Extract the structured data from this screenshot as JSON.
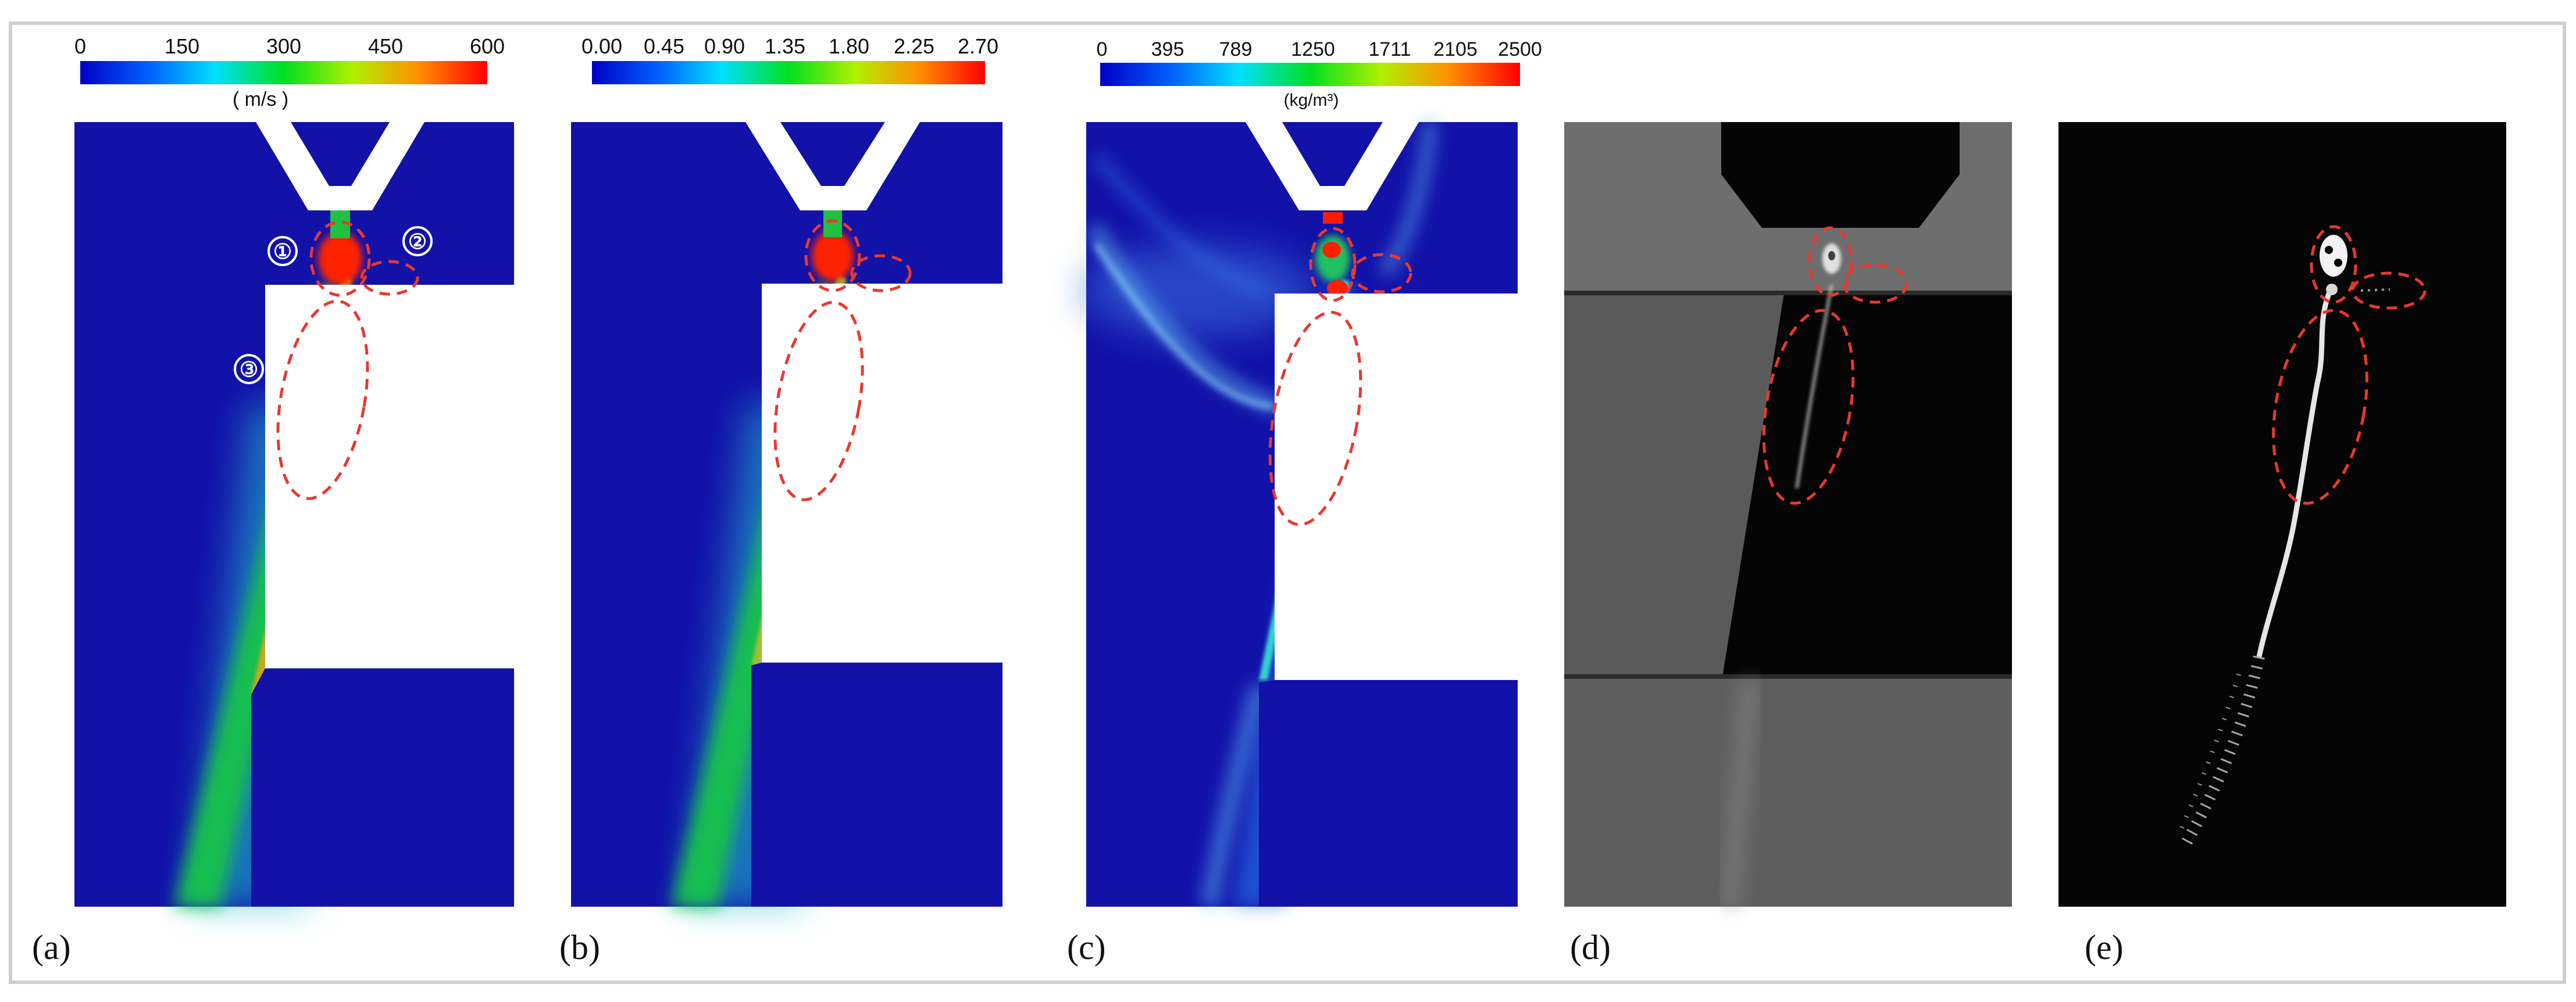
{
  "colors": {
    "field_blue": "#1212a8",
    "frame_gray": "#cfcfcf",
    "annotation_red": "#e8382f",
    "photo_gray": "#6e6e6e",
    "photo_black": "#050505"
  },
  "panels": [
    {
      "label": "(a)",
      "colorbar": {
        "ticks": [
          "0",
          "150",
          "300",
          "450",
          "600"
        ],
        "unit": "( m/s )"
      },
      "markers": [
        "①",
        "②",
        "③"
      ]
    },
    {
      "label": "(b)",
      "colorbar": {
        "ticks": [
          "0.00",
          "0.45",
          "0.90",
          "1.35",
          "1.80",
          "2.25",
          "2.70"
        ],
        "unit": ""
      }
    },
    {
      "label": "(c)",
      "colorbar": {
        "ticks": [
          "0",
          "395",
          "789",
          "1250",
          "1711",
          "2105",
          "2500"
        ],
        "unit": "(kg/m³)"
      }
    },
    {
      "label": "(d)"
    },
    {
      "label": "(e)"
    }
  ]
}
